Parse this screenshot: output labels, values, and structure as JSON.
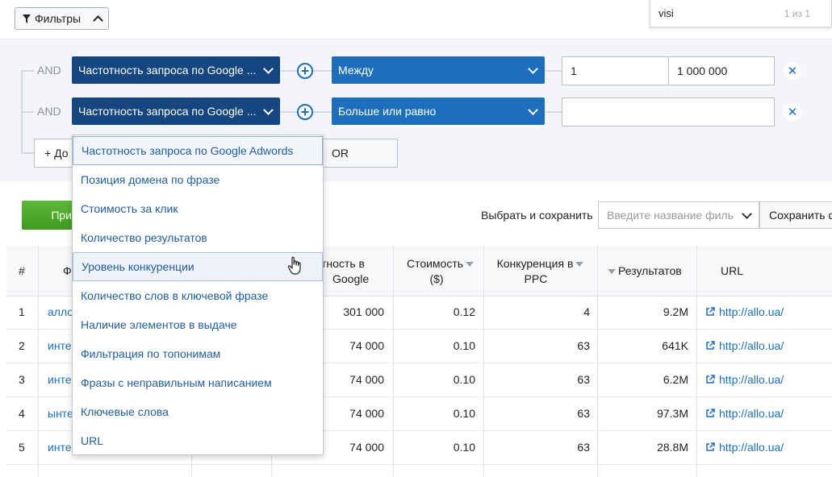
{
  "toolbar": {
    "filters_label": "Фильтры"
  },
  "search": {
    "value": "visi",
    "count": "1 из 1"
  },
  "filter_rows": [
    {
      "logic": "AND",
      "field": "Частотность запроса по Google ...",
      "operator": "Между",
      "value_from": "1",
      "value_to": "1 000 000"
    },
    {
      "logic": "AND",
      "field": "Частотность запроса по Google ...",
      "operator": "Больше или равно",
      "value": ""
    }
  ],
  "filter_actions": {
    "add_label": "+ До",
    "or_label": "OR"
  },
  "dropdown": {
    "items": [
      "Частотность запроса по Google Adwords",
      "Позиция домена по фразе",
      "Стоимость за клик",
      "Количество результатов",
      "Уровень конкуренции",
      "Количество слов в ключевой фразе",
      "Наличие элементов в выдаче",
      "Фильтрация по топонимам",
      "Фразы с неправильным написанием",
      "Ключевые слова",
      "URL"
    ],
    "selected_index": 0,
    "hover_index": 4
  },
  "actions": {
    "apply_label": "При",
    "save_label": "Выбрать и сохранить",
    "save_placeholder": "Введите название филь",
    "save_button": "Сохранить ф"
  },
  "table": {
    "headers": {
      "num": "#",
      "phrase": "Ф",
      "freq_line1": "тность в",
      "freq_line2": "Google",
      "cost_line1": "Стоимость",
      "cost_line2": "($)",
      "comp_line1": "Конкуренция в",
      "comp_line2": "PPC",
      "results": "Результатов",
      "url": "URL"
    },
    "rows": [
      {
        "num": "1",
        "kw": "алло",
        "freq": "301 000",
        "cost": "0.12",
        "comp": "4",
        "results": "9.2M",
        "url": "http://allo.ua/"
      },
      {
        "num": "2",
        "kw": "инте",
        "freq": "74 000",
        "cost": "0.10",
        "comp": "63",
        "results": "641K",
        "url": "http://allo.ua/"
      },
      {
        "num": "3",
        "kw": "инте",
        "freq": "74 000",
        "cost": "0.10",
        "comp": "63",
        "results": "6.2M",
        "url": "http://allo.ua/"
      },
      {
        "num": "4",
        "kw": "ынте",
        "freq": "74 000",
        "cost": "0.10",
        "comp": "63",
        "results": "97.3M",
        "url": "http://allo.ua/"
      },
      {
        "num": "5",
        "kw": "инте",
        "freq": "74 000",
        "cost": "0.10",
        "comp": "63",
        "results": "28.8M",
        "url": "http://allo.ua/"
      }
    ]
  },
  "colors": {
    "accent": "#1d6fbe",
    "dark_select": "#15467f",
    "apply_green": "#4caf2a"
  }
}
